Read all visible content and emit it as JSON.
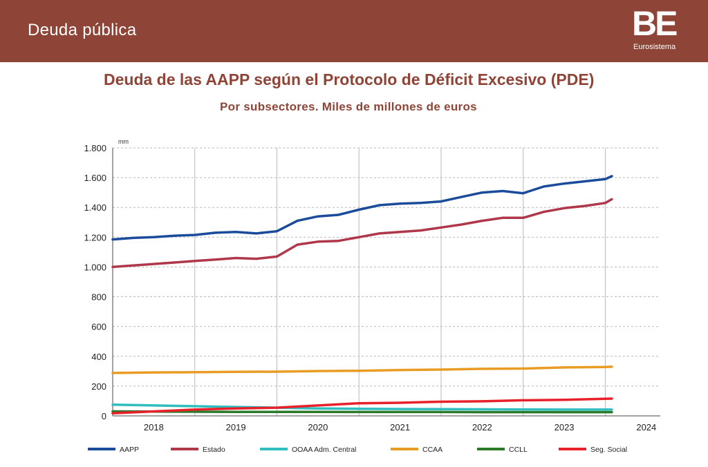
{
  "header": {
    "title": "Deuda pública",
    "logo": "BE",
    "logo_sub": "Eurosistema"
  },
  "chart_data": {
    "type": "line",
    "title": "Deuda de las AAPP según el Protocolo de Déficit Excesivo (PDE)",
    "subtitle": "Por subsectores. Miles de millones de euros",
    "ylabel": "mm",
    "ylim": [
      0,
      1800
    ],
    "yticks": [
      0,
      200,
      400,
      600,
      800,
      1000,
      1200,
      1400,
      1600,
      1800
    ],
    "ytick_labels": [
      "0",
      "200",
      "400",
      "600",
      "800",
      "1.000",
      "1.200",
      "1.400",
      "1.600",
      "1.800"
    ],
    "xlim": [
      2018.0,
      2024.67
    ],
    "x_labels": [
      "2018",
      "2019",
      "2020",
      "2021",
      "2022",
      "2023",
      "2024"
    ],
    "grid": true,
    "legend_position": "bottom",
    "series": [
      {
        "name": "AAPP",
        "color": "#1b4b9b",
        "x": [
          2018.0,
          2018.25,
          2018.5,
          2018.75,
          2019.0,
          2019.25,
          2019.5,
          2019.75,
          2020.0,
          2020.25,
          2020.5,
          2020.75,
          2021.0,
          2021.25,
          2021.5,
          2021.75,
          2022.0,
          2022.25,
          2022.5,
          2022.75,
          2023.0,
          2023.25,
          2023.5,
          2023.75,
          2024.0,
          2024.08
        ],
        "values": [
          1185,
          1195,
          1200,
          1210,
          1215,
          1230,
          1235,
          1225,
          1240,
          1310,
          1340,
          1350,
          1385,
          1415,
          1425,
          1430,
          1440,
          1470,
          1500,
          1510,
          1495,
          1540,
          1560,
          1575,
          1590,
          1610
        ]
      },
      {
        "name": "Estado",
        "color": "#b0364a",
        "x": [
          2018.0,
          2018.25,
          2018.5,
          2018.75,
          2019.0,
          2019.25,
          2019.5,
          2019.75,
          2020.0,
          2020.25,
          2020.5,
          2020.75,
          2021.0,
          2021.25,
          2021.5,
          2021.75,
          2022.0,
          2022.25,
          2022.5,
          2022.75,
          2023.0,
          2023.25,
          2023.5,
          2023.75,
          2024.0,
          2024.08
        ],
        "values": [
          1000,
          1010,
          1020,
          1030,
          1040,
          1050,
          1060,
          1055,
          1070,
          1150,
          1170,
          1175,
          1200,
          1225,
          1235,
          1245,
          1265,
          1285,
          1310,
          1330,
          1330,
          1370,
          1395,
          1410,
          1430,
          1455
        ]
      },
      {
        "name": "OOAA Adm. Central",
        "color": "#30bdbd",
        "x": [
          2018.0,
          2018.5,
          2019.0,
          2019.5,
          2020.0,
          2020.5,
          2021.0,
          2021.5,
          2022.0,
          2022.5,
          2023.0,
          2023.5,
          2024.0,
          2024.08
        ],
        "values": [
          75,
          70,
          65,
          60,
          55,
          50,
          48,
          46,
          45,
          44,
          43,
          42,
          42,
          42
        ]
      },
      {
        "name": "CCAA",
        "color": "#e99c24",
        "x": [
          2018.0,
          2018.5,
          2019.0,
          2019.5,
          2020.0,
          2020.5,
          2021.0,
          2021.5,
          2022.0,
          2022.5,
          2023.0,
          2023.5,
          2024.0,
          2024.08
        ],
        "values": [
          288,
          292,
          293,
          296,
          297,
          301,
          303,
          308,
          311,
          316,
          318,
          325,
          328,
          330
        ]
      },
      {
        "name": "CCLL",
        "color": "#2a7a2a",
        "x": [
          2018.0,
          2018.5,
          2019.0,
          2019.5,
          2020.0,
          2020.5,
          2021.0,
          2021.5,
          2022.0,
          2022.5,
          2023.0,
          2023.5,
          2024.0,
          2024.08
        ],
        "values": [
          30,
          29,
          28,
          27,
          27,
          27,
          26,
          26,
          26,
          25,
          25,
          25,
          25,
          25
        ]
      },
      {
        "name": "Seg. Social",
        "color": "#e8202a",
        "x": [
          2018.0,
          2018.5,
          2019.0,
          2019.5,
          2020.0,
          2020.5,
          2021.0,
          2021.5,
          2022.0,
          2022.5,
          2023.0,
          2023.5,
          2024.0,
          2024.08
        ],
        "values": [
          17,
          30,
          42,
          50,
          55,
          70,
          85,
          88,
          95,
          98,
          105,
          108,
          115,
          116
        ]
      }
    ]
  }
}
